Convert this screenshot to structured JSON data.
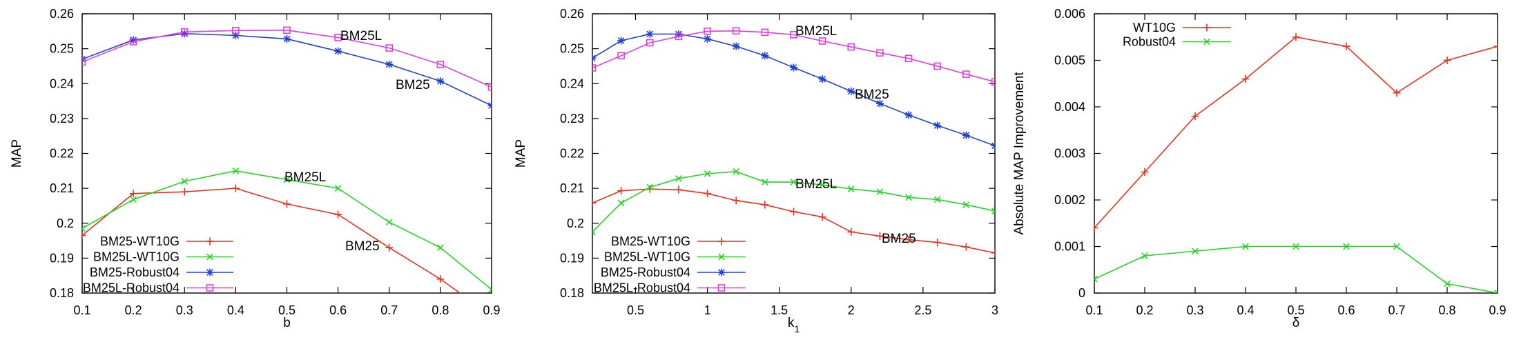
{
  "colors": {
    "red": "#e8301f",
    "green": "#22d622",
    "blue": "#1f3fd6",
    "magenta": "#e33ee3",
    "axis": "#000000"
  },
  "chart_data": [
    {
      "type": "line",
      "xlabel": "b",
      "ylabel": "MAP",
      "xlim": [
        0.1,
        0.9
      ],
      "ylim": [
        0.18,
        0.26
      ],
      "xticks": [
        0.1,
        0.2,
        0.3,
        0.4,
        0.5,
        0.6,
        0.7,
        0.8,
        0.9
      ],
      "xtick_labels": [
        "0.1",
        "0.2",
        "0.3",
        "0.4",
        "0.5",
        "0.6",
        "0.7",
        "0.8",
        "0.9"
      ],
      "yticks": [
        0.18,
        0.19,
        0.2,
        0.21,
        0.22,
        0.23,
        0.24,
        0.25,
        0.26
      ],
      "ytick_labels": [
        "0.18",
        "0.19",
        "0.2",
        "0.21",
        "0.22",
        "0.23",
        "0.24",
        "0.25",
        "0.26"
      ],
      "grid": false,
      "legend_position": "bottom-left",
      "series": [
        {
          "name": "BM25-WT10G",
          "color": "red",
          "marker": "plus",
          "x": [
            0.1,
            0.2,
            0.3,
            0.4,
            0.5,
            0.6,
            0.7,
            0.8,
            0.9
          ],
          "y": [
            0.1965,
            0.2085,
            0.209,
            0.21,
            0.2055,
            0.2025,
            0.193,
            0.184,
            0.1735
          ]
        },
        {
          "name": "BM25L-WT10G",
          "color": "green",
          "marker": "x",
          "x": [
            0.1,
            0.2,
            0.3,
            0.4,
            0.5,
            0.6,
            0.7,
            0.8,
            0.9
          ],
          "y": [
            0.1985,
            0.2068,
            0.212,
            0.215,
            0.2125,
            0.21,
            0.2003,
            0.193,
            0.181
          ]
        },
        {
          "name": "BM25-Robust04",
          "color": "blue",
          "marker": "star",
          "x": [
            0.1,
            0.2,
            0.3,
            0.4,
            0.5,
            0.6,
            0.7,
            0.8,
            0.9
          ],
          "y": [
            0.247,
            0.2525,
            0.2543,
            0.2538,
            0.2528,
            0.2493,
            0.2455,
            0.2407,
            0.2337
          ]
        },
        {
          "name": "BM25L-Robust04",
          "color": "magenta",
          "marker": "square",
          "x": [
            0.1,
            0.2,
            0.3,
            0.4,
            0.5,
            0.6,
            0.7,
            0.8,
            0.9
          ],
          "y": [
            0.2462,
            0.252,
            0.2548,
            0.2552,
            0.2553,
            0.2532,
            0.2502,
            0.2455,
            0.239
          ]
        }
      ],
      "annotations": [
        {
          "text": "BM25L",
          "x": 0.63,
          "y": 0.2534
        },
        {
          "text": "BM25",
          "x": 0.79,
          "y": 0.2405
        },
        {
          "text": "BM25L",
          "x": 0.57,
          "y": 0.2123
        },
        {
          "text": "BM25",
          "x": 0.66,
          "y": 0.1965
        }
      ]
    },
    {
      "type": "line",
      "xlabel": "k",
      "xlabel_sub": "1",
      "ylabel": "MAP",
      "xlim": [
        0.2,
        3.0
      ],
      "ylim": [
        0.18,
        0.26
      ],
      "xticks": [
        0.5,
        1.0,
        1.5,
        2.0,
        2.5,
        3.0
      ],
      "xtick_labels": [
        "0.5",
        "1",
        "1.5",
        "2",
        "2.5",
        "3"
      ],
      "yticks": [
        0.18,
        0.19,
        0.2,
        0.21,
        0.22,
        0.23,
        0.24,
        0.25,
        0.26
      ],
      "ytick_labels": [
        "0.18",
        "0.19",
        "0.2",
        "0.21",
        "0.22",
        "0.23",
        "0.24",
        "0.25",
        "0.26"
      ],
      "grid": false,
      "legend_position": "bottom-left",
      "series": [
        {
          "name": "BM25-WT10G",
          "color": "red",
          "marker": "plus",
          "x": [
            0.2,
            0.4,
            0.6,
            0.8,
            1.0,
            1.2,
            1.4,
            1.6,
            1.8,
            2.0,
            2.2,
            2.4,
            2.6,
            2.8,
            3.0
          ],
          "y": [
            0.2058,
            0.2093,
            0.2098,
            0.2096,
            0.2085,
            0.2065,
            0.2053,
            0.2033,
            0.2018,
            0.1975,
            0.1963,
            0.1953,
            0.1945,
            0.1932,
            0.1915
          ]
        },
        {
          "name": "BM25L-WT10G",
          "color": "green",
          "marker": "x",
          "x": [
            0.2,
            0.4,
            0.6,
            0.8,
            1.0,
            1.2,
            1.4,
            1.6,
            1.8,
            2.0,
            2.2,
            2.4,
            2.6,
            2.8,
            3.0
          ],
          "y": [
            0.1975,
            0.2058,
            0.2103,
            0.2128,
            0.2142,
            0.2148,
            0.2118,
            0.2118,
            0.211,
            0.2098,
            0.209,
            0.2074,
            0.2068,
            0.2053,
            0.2035
          ]
        },
        {
          "name": "BM25-Robust04",
          "color": "blue",
          "marker": "star",
          "x": [
            0.2,
            0.4,
            0.6,
            0.8,
            1.0,
            1.2,
            1.4,
            1.6,
            1.8,
            2.0,
            2.2,
            2.4,
            2.6,
            2.8,
            3.0
          ],
          "y": [
            0.2473,
            0.2523,
            0.2542,
            0.2542,
            0.2528,
            0.2507,
            0.248,
            0.2446,
            0.2413,
            0.2378,
            0.2343,
            0.231,
            0.228,
            0.2252,
            0.2222
          ]
        },
        {
          "name": "BM25L-Robust04",
          "color": "magenta",
          "marker": "square",
          "x": [
            0.2,
            0.4,
            0.6,
            0.8,
            1.0,
            1.2,
            1.4,
            1.6,
            1.8,
            2.0,
            2.2,
            2.4,
            2.6,
            2.8,
            3.0
          ],
          "y": [
            0.2445,
            0.248,
            0.2517,
            0.2535,
            0.255,
            0.2551,
            0.2547,
            0.254,
            0.2522,
            0.2505,
            0.2488,
            0.2472,
            0.245,
            0.2427,
            0.2405
          ]
        }
      ],
      "annotations": [
        {
          "text": "BM25L",
          "x": 1.8,
          "y": 0.2545
        },
        {
          "text": "BM25",
          "x": 2.03,
          "y": 0.2382
        },
        {
          "text": "BM25L",
          "x": 1.8,
          "y": 0.2125
        },
        {
          "text": "BM25",
          "x": 2.25,
          "y": 0.1982
        }
      ]
    },
    {
      "type": "line",
      "xlabel": "δ",
      "ylabel": "Absolute MAP Improvement",
      "xlim": [
        0.1,
        0.9
      ],
      "ylim": [
        0,
        0.006
      ],
      "xticks": [
        0.1,
        0.2,
        0.3,
        0.4,
        0.5,
        0.6,
        0.7,
        0.8,
        0.9
      ],
      "xtick_labels": [
        "0.1",
        "0.2",
        "0.3",
        "0.4",
        "0.5",
        "0.6",
        "0.7",
        "0.8",
        "0.9"
      ],
      "yticks": [
        0,
        0.001,
        0.002,
        0.003,
        0.004,
        0.005,
        0.006
      ],
      "ytick_labels": [
        "0",
        "0.001",
        "0.002",
        "0.003",
        "0.004",
        "0.005",
        "0.006"
      ],
      "grid": false,
      "legend_position": "top-left",
      "series": [
        {
          "name": "WT10G",
          "color": "red",
          "marker": "plus",
          "x": [
            0.1,
            0.2,
            0.3,
            0.4,
            0.5,
            0.6,
            0.7,
            0.8,
            0.9
          ],
          "y": [
            0.0014,
            0.0026,
            0.0038,
            0.0046,
            0.0055,
            0.0053,
            0.0043,
            0.005,
            0.0053
          ]
        },
        {
          "name": "Robust04",
          "color": "green",
          "marker": "x",
          "x": [
            0.1,
            0.2,
            0.3,
            0.4,
            0.5,
            0.6,
            0.7,
            0.8,
            0.9
          ],
          "y": [
            0.0003,
            0.0008,
            0.0009,
            0.001,
            0.001,
            0.001,
            0.001,
            0.0002,
            0.0
          ]
        }
      ],
      "annotations": []
    }
  ]
}
